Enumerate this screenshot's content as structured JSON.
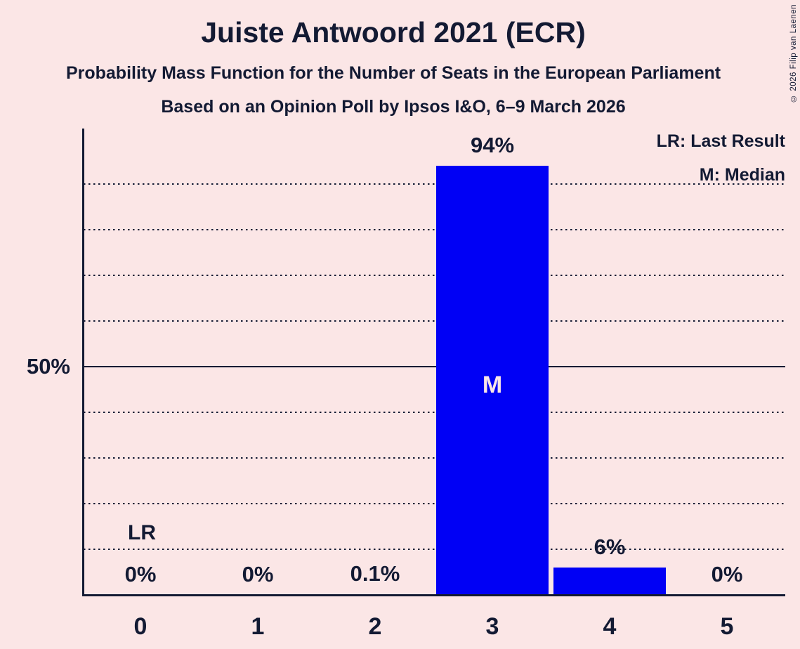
{
  "title": "Juiste Antwoord 2021 (ECR)",
  "subtitle": "Probability Mass Function for the Number of Seats in the European Parliament",
  "poll_line": "Based on an Opinion Poll by Ipsos I&O, 6–9 March 2026",
  "copyright": "© 2026 Filip van Laenen",
  "legend": {
    "last_result": "LR: Last Result",
    "median": "M: Median"
  },
  "y_axis_label": "50%",
  "annotations": {
    "last_result": "LR",
    "median": "M"
  },
  "colors": {
    "background": "#fbe6e6",
    "bar_blue": "#0000f5",
    "text_dark": "#131a33"
  },
  "chart_data": {
    "type": "bar",
    "title": "Juiste Antwoord 2021 (ECR)",
    "categories": [
      "0",
      "1",
      "2",
      "3",
      "4",
      "5"
    ],
    "values": [
      0,
      0,
      0.1,
      94,
      6,
      0
    ],
    "value_labels": [
      "0%",
      "0%",
      "0.1%",
      "94%",
      "6%",
      "0%"
    ],
    "xlabel": "",
    "ylabel": "",
    "ylim": [
      0,
      100
    ],
    "y_tick_labels": [
      "50%"
    ],
    "y_gridlines_dotted_percent": [
      10,
      20,
      30,
      40,
      60,
      70,
      80,
      90
    ],
    "y_gridline_solid_percent": 50,
    "median_category": "3",
    "last_result_category": "0",
    "legend_entries": [
      "LR: Last Result",
      "M: Median"
    ],
    "legend_position": "top-right",
    "grid": true
  }
}
